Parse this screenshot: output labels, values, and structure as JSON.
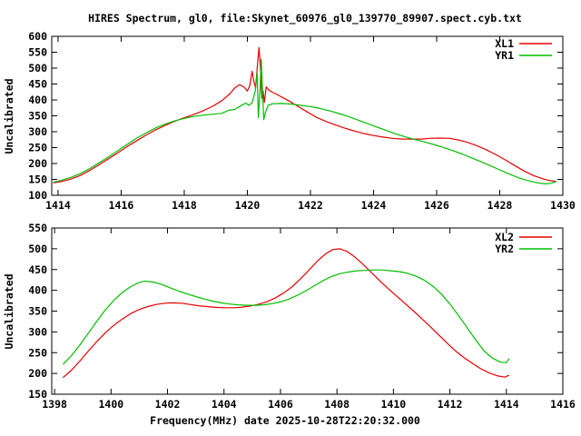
{
  "title": "HIRES Spectrum, gl0, file:Skynet_60976_gl0_139770_89907.spect.cyb.txt",
  "xlabel": "Frequency(MHz) date 2025-10-28T22:20:32.000",
  "background": "#ffffff",
  "axis_color": "#000000",
  "chart_data": [
    {
      "type": "line",
      "title": "",
      "ylabel": "Uncalibrated",
      "xlabel": "",
      "xlim": [
        1414,
        1430
      ],
      "ylim": [
        100,
        600
      ],
      "xticks": [
        1414,
        1416,
        1418,
        1420,
        1422,
        1424,
        1426,
        1428,
        1430
      ],
      "yticks": [
        100,
        150,
        200,
        250,
        300,
        350,
        400,
        450,
        500,
        550,
        600
      ],
      "grid": false,
      "legend_position": "top-right",
      "legend": [
        "XL1",
        "YR1"
      ],
      "series": [
        {
          "name": "XL1",
          "color": "#e60000",
          "points": [
            [
              1413.85,
              139
            ],
            [
              1414.1,
              143
            ],
            [
              1414.4,
              151
            ],
            [
              1414.7,
              162
            ],
            [
              1415.0,
              178
            ],
            [
              1415.3,
              196
            ],
            [
              1415.6,
              215
            ],
            [
              1415.9,
              234
            ],
            [
              1416.2,
              254
            ],
            [
              1416.5,
              272
            ],
            [
              1416.8,
              290
            ],
            [
              1417.1,
              306
            ],
            [
              1417.4,
              320
            ],
            [
              1417.7,
              333
            ],
            [
              1418.0,
              344
            ],
            [
              1418.3,
              354
            ],
            [
              1418.6,
              366
            ],
            [
              1418.9,
              380
            ],
            [
              1419.2,
              398
            ],
            [
              1419.45,
              420
            ],
            [
              1419.6,
              438
            ],
            [
              1419.75,
              448
            ],
            [
              1419.9,
              440
            ],
            [
              1420.0,
              428
            ],
            [
              1420.08,
              446
            ],
            [
              1420.15,
              490
            ],
            [
              1420.2,
              462
            ],
            [
              1420.26,
              438
            ],
            [
              1420.32,
              510
            ],
            [
              1420.37,
              565
            ],
            [
              1420.42,
              492
            ],
            [
              1420.46,
              405
            ],
            [
              1420.5,
              428
            ],
            [
              1420.54,
              392
            ],
            [
              1420.6,
              441
            ],
            [
              1420.68,
              431
            ],
            [
              1420.8,
              424
            ],
            [
              1421.0,
              414
            ],
            [
              1421.3,
              398
            ],
            [
              1421.6,
              380
            ],
            [
              1421.9,
              362
            ],
            [
              1422.2,
              345
            ],
            [
              1422.5,
              332
            ],
            [
              1422.8,
              321
            ],
            [
              1423.1,
              311
            ],
            [
              1423.4,
              302
            ],
            [
              1423.7,
              294
            ],
            [
              1424.0,
              288
            ],
            [
              1424.3,
              283
            ],
            [
              1424.6,
              279
            ],
            [
              1424.9,
              277
            ],
            [
              1425.2,
              277
            ],
            [
              1425.5,
              277
            ],
            [
              1425.8,
              279
            ],
            [
              1426.1,
              280
            ],
            [
              1426.4,
              279
            ],
            [
              1426.7,
              274
            ],
            [
              1427.0,
              266
            ],
            [
              1427.3,
              255
            ],
            [
              1427.6,
              242
            ],
            [
              1427.9,
              227
            ],
            [
              1428.2,
              210
            ],
            [
              1428.5,
              192
            ],
            [
              1428.8,
              175
            ],
            [
              1429.1,
              161
            ],
            [
              1429.4,
              151
            ],
            [
              1429.6,
              146
            ],
            [
              1429.8,
              143
            ]
          ]
        },
        {
          "name": "YR1",
          "color": "#00be00",
          "points": [
            [
              1413.85,
              141
            ],
            [
              1414.1,
              147
            ],
            [
              1414.4,
              156
            ],
            [
              1414.7,
              168
            ],
            [
              1415.0,
              184
            ],
            [
              1415.3,
              202
            ],
            [
              1415.6,
              221
            ],
            [
              1415.9,
              241
            ],
            [
              1416.2,
              261
            ],
            [
              1416.5,
              280
            ],
            [
              1416.8,
              297
            ],
            [
              1417.1,
              312
            ],
            [
              1417.4,
              324
            ],
            [
              1417.7,
              334
            ],
            [
              1418.0,
              342
            ],
            [
              1418.3,
              348
            ],
            [
              1418.6,
              352
            ],
            [
              1418.9,
              355
            ],
            [
              1419.2,
              358
            ],
            [
              1419.4,
              367
            ],
            [
              1419.6,
              370
            ],
            [
              1419.8,
              382
            ],
            [
              1419.95,
              390
            ],
            [
              1420.05,
              383
            ],
            [
              1420.15,
              391
            ],
            [
              1420.25,
              428
            ],
            [
              1420.31,
              486
            ],
            [
              1420.35,
              345
            ],
            [
              1420.4,
              432
            ],
            [
              1420.44,
              529
            ],
            [
              1420.48,
              428
            ],
            [
              1420.52,
              338
            ],
            [
              1420.58,
              362
            ],
            [
              1420.66,
              383
            ],
            [
              1420.8,
              388
            ],
            [
              1421.1,
              389
            ],
            [
              1421.4,
              387
            ],
            [
              1421.7,
              383
            ],
            [
              1422.0,
              379
            ],
            [
              1422.3,
              373
            ],
            [
              1422.6,
              366
            ],
            [
              1422.9,
              357
            ],
            [
              1423.2,
              348
            ],
            [
              1423.5,
              337
            ],
            [
              1423.8,
              326
            ],
            [
              1424.1,
              315
            ],
            [
              1424.4,
              304
            ],
            [
              1424.7,
              293
            ],
            [
              1425.0,
              284
            ],
            [
              1425.3,
              276
            ],
            [
              1425.6,
              268
            ],
            [
              1425.9,
              260
            ],
            [
              1426.2,
              251
            ],
            [
              1426.5,
              241
            ],
            [
              1426.8,
              230
            ],
            [
              1427.1,
              218
            ],
            [
              1427.4,
              206
            ],
            [
              1427.7,
              193
            ],
            [
              1428.0,
              180
            ],
            [
              1428.3,
              167
            ],
            [
              1428.6,
              155
            ],
            [
              1428.9,
              146
            ],
            [
              1429.2,
              139
            ],
            [
              1429.45,
              136
            ],
            [
              1429.65,
              138
            ],
            [
              1429.8,
              144
            ]
          ]
        }
      ]
    },
    {
      "type": "line",
      "title": "",
      "ylabel": "Uncalibrated",
      "xlabel": "Frequency(MHz) date 2025-10-28T22:20:32.000",
      "xlim": [
        1398,
        1416
      ],
      "ylim": [
        150,
        550
      ],
      "xticks": [
        1398,
        1400,
        1402,
        1404,
        1406,
        1408,
        1410,
        1412,
        1414,
        1416
      ],
      "yticks": [
        150,
        200,
        250,
        300,
        350,
        400,
        450,
        500,
        550
      ],
      "grid": false,
      "legend_position": "top-right",
      "legend": [
        "XL2",
        "YR2"
      ],
      "series": [
        {
          "name": "XL2",
          "color": "#e60000",
          "points": [
            [
              1398.3,
              190
            ],
            [
              1398.6,
              208
            ],
            [
              1398.9,
              230
            ],
            [
              1399.2,
              254
            ],
            [
              1399.5,
              277
            ],
            [
              1399.8,
              298
            ],
            [
              1400.1,
              316
            ],
            [
              1400.4,
              331
            ],
            [
              1400.7,
              344
            ],
            [
              1401.0,
              354
            ],
            [
              1401.3,
              361
            ],
            [
              1401.6,
              366
            ],
            [
              1401.9,
              369
            ],
            [
              1402.2,
              370
            ],
            [
              1402.5,
              369
            ],
            [
              1402.8,
              366
            ],
            [
              1403.1,
              363
            ],
            [
              1403.4,
              361
            ],
            [
              1403.7,
              359
            ],
            [
              1404.0,
              358
            ],
            [
              1404.3,
              358
            ],
            [
              1404.6,
              359
            ],
            [
              1404.9,
              362
            ],
            [
              1405.2,
              366
            ],
            [
              1405.5,
              372
            ],
            [
              1405.8,
              381
            ],
            [
              1406.1,
              393
            ],
            [
              1406.4,
              408
            ],
            [
              1406.7,
              427
            ],
            [
              1407.0,
              448
            ],
            [
              1407.3,
              470
            ],
            [
              1407.6,
              488
            ],
            [
              1407.85,
              498
            ],
            [
              1408.1,
              500
            ],
            [
              1408.35,
              494
            ],
            [
              1408.6,
              482
            ],
            [
              1408.9,
              464
            ],
            [
              1409.2,
              444
            ],
            [
              1409.5,
              424
            ],
            [
              1409.8,
              405
            ],
            [
              1410.1,
              387
            ],
            [
              1410.4,
              369
            ],
            [
              1410.7,
              351
            ],
            [
              1411.0,
              332
            ],
            [
              1411.3,
              313
            ],
            [
              1411.6,
              293
            ],
            [
              1411.9,
              273
            ],
            [
              1412.2,
              254
            ],
            [
              1412.5,
              238
            ],
            [
              1412.8,
              224
            ],
            [
              1413.1,
              211
            ],
            [
              1413.4,
              201
            ],
            [
              1413.7,
              194
            ],
            [
              1413.95,
              191
            ],
            [
              1414.1,
              196
            ]
          ]
        },
        {
          "name": "YR2",
          "color": "#00be00",
          "points": [
            [
              1398.3,
              222
            ],
            [
              1398.6,
              243
            ],
            [
              1398.9,
              269
            ],
            [
              1399.2,
              297
            ],
            [
              1399.5,
              326
            ],
            [
              1399.8,
              353
            ],
            [
              1400.1,
              376
            ],
            [
              1400.4,
              395
            ],
            [
              1400.7,
              409
            ],
            [
              1401.0,
              419
            ],
            [
              1401.2,
              422
            ],
            [
              1401.5,
              420
            ],
            [
              1401.8,
              414
            ],
            [
              1402.1,
              406
            ],
            [
              1402.4,
              398
            ],
            [
              1402.7,
              391
            ],
            [
              1403.0,
              385
            ],
            [
              1403.3,
              379
            ],
            [
              1403.6,
              374
            ],
            [
              1403.9,
              370
            ],
            [
              1404.2,
              367
            ],
            [
              1404.5,
              365
            ],
            [
              1404.8,
              364
            ],
            [
              1405.1,
              364
            ],
            [
              1405.4,
              365
            ],
            [
              1405.7,
              368
            ],
            [
              1406.0,
              372
            ],
            [
              1406.3,
              379
            ],
            [
              1406.6,
              388
            ],
            [
              1406.9,
              399
            ],
            [
              1407.2,
              411
            ],
            [
              1407.5,
              423
            ],
            [
              1407.8,
              433
            ],
            [
              1408.1,
              440
            ],
            [
              1408.4,
              444
            ],
            [
              1408.7,
              447
            ],
            [
              1409.0,
              448
            ],
            [
              1409.3,
              449
            ],
            [
              1409.6,
              449
            ],
            [
              1409.9,
              447
            ],
            [
              1410.2,
              445
            ],
            [
              1410.5,
              441
            ],
            [
              1410.8,
              434
            ],
            [
              1411.1,
              424
            ],
            [
              1411.4,
              410
            ],
            [
              1411.7,
              391
            ],
            [
              1412.0,
              367
            ],
            [
              1412.3,
              340
            ],
            [
              1412.6,
              311
            ],
            [
              1412.9,
              282
            ],
            [
              1413.2,
              255
            ],
            [
              1413.5,
              237
            ],
            [
              1413.8,
              227
            ],
            [
              1414.0,
              226
            ],
            [
              1414.1,
              236
            ]
          ]
        }
      ]
    }
  ]
}
